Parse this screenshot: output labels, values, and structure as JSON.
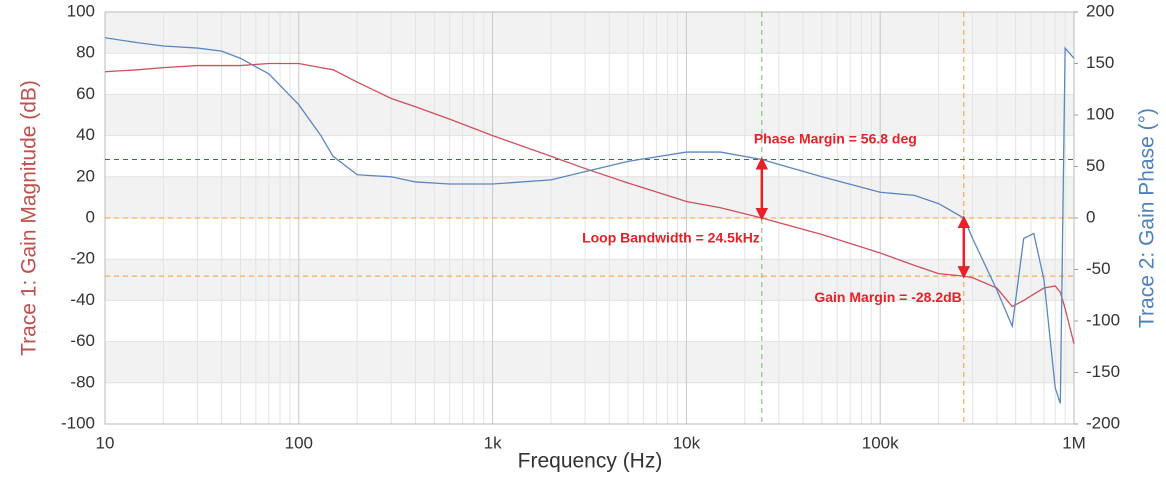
{
  "chart_data": {
    "type": "line",
    "xlabel": "Frequency (Hz)",
    "ylabel": "Trace 1: Gain Magnitude (dB)",
    "y2label": "Trace 2: Gain Phase (°)",
    "xscale": "log",
    "xlim": [
      10,
      1000000
    ],
    "ylim": [
      -100,
      100
    ],
    "y2lim": [
      -200,
      200
    ],
    "xticks": [
      10,
      100,
      {
        "value": 1000,
        "label": "1k"
      },
      {
        "value": 10000,
        "label": "10k"
      },
      {
        "value": 100000,
        "label": "100k"
      },
      {
        "value": 1000000,
        "label": "1M"
      }
    ],
    "yticks": [
      -100,
      -80,
      -60,
      -40,
      -20,
      0,
      20,
      40,
      60,
      80,
      100
    ],
    "y2ticks": [
      -200,
      -150,
      -100,
      -50,
      0,
      50,
      100,
      150,
      200
    ],
    "grid": true,
    "x": [
      10,
      15,
      20,
      30,
      40,
      50,
      70,
      100,
      130,
      150,
      200,
      300,
      400,
      600,
      1000,
      2000,
      3000,
      5000,
      10000,
      15000,
      24500,
      50000,
      100000,
      150000,
      200000,
      270000,
      300000,
      400000,
      480000,
      550000,
      620000,
      700000,
      800000,
      850000,
      900000,
      1000000
    ],
    "series": [
      {
        "color": "#d0505a",
        "values": [
          71,
          72,
          73,
          74,
          74,
          74,
          75,
          75,
          73,
          72,
          66,
          58,
          54,
          48,
          40,
          30,
          24,
          17,
          8,
          5,
          0,
          -8,
          -17,
          -23,
          -27,
          -28.2,
          -29,
          -34,
          -43,
          -40,
          -37,
          -34,
          -33,
          -36,
          -44,
          -61
        ]
      },
      {
        "color": "#5b87c0",
        "axis": "y2",
        "values": [
          175,
          170,
          167,
          165,
          162,
          155,
          140,
          110,
          80,
          60,
          42,
          40,
          35,
          33,
          33,
          37,
          45,
          55,
          64,
          64,
          56.8,
          40,
          25,
          22,
          14,
          0,
          -20,
          -70,
          -105,
          -20,
          -15,
          -60,
          -165,
          -180,
          165,
          155
        ]
      }
    ],
    "reference_lines": [
      {
        "axis": "x",
        "value": 24500,
        "color": "#7ab870"
      },
      {
        "axis": "x",
        "value": 270000,
        "color": "#f0a030"
      },
      {
        "axis": "y2",
        "value": 56.8,
        "color": "#2e7d32"
      },
      {
        "axis": "y",
        "value": 0,
        "color": "#f0a030"
      },
      {
        "axis": "y",
        "value": -28.2,
        "color": "#f0a030"
      }
    ],
    "arrows": [
      {
        "x": 24500,
        "axis": "y2",
        "from": 0,
        "to": 56.8,
        "color": "#e8202a"
      },
      {
        "x": 270000,
        "axis": "y",
        "from": -28.2,
        "to": 0,
        "color": "#e8202a"
      }
    ],
    "annotations": [
      {
        "text": "Phase Margin = 56.8 deg",
        "x": 24500,
        "y": 38,
        "anchor": "start"
      },
      {
        "text": "Loop Bandwidth = 24.5kHz",
        "x": 24500,
        "y": -10,
        "anchor": "end"
      },
      {
        "text": "Gain Margin = -28.2dB",
        "x": 270000,
        "y": -39,
        "anchor": "end"
      }
    ],
    "annotation_color": "#e8202a"
  }
}
